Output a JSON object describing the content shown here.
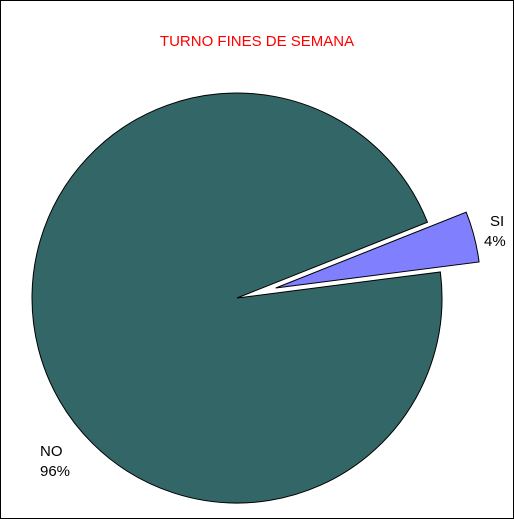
{
  "chart_data": {
    "type": "pie",
    "title": "TURNO FINES DE SEMANA",
    "categories": [
      "SI",
      "NO"
    ],
    "values": [
      4,
      96
    ],
    "value_labels": [
      "4%",
      "96%"
    ],
    "colors": [
      "#8080ff",
      "#336666"
    ],
    "title_color": "#ff0000"
  }
}
